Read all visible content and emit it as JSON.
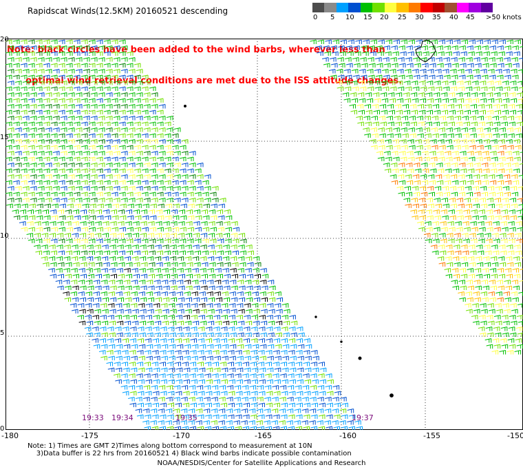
{
  "title": "Rapidscat Winds(12.5KM) 20160521 descending",
  "note_lines": [
    "Note: black circles have been added to the wind barbs, wherever less than",
    "      optimal wind retrieval conditions are met due to the ISS attitude changes."
  ],
  "legend": {
    "colors": [
      "#4d4d4d",
      "#8a8a8a",
      "#00a0ff",
      "#0050d0",
      "#00c000",
      "#70e000",
      "#ffff40",
      "#ffc000",
      "#ff7a00",
      "#ff0000",
      "#c00000",
      "#a05030",
      "#ff00ff",
      "#a000e0",
      "#6000a0"
    ],
    "labels": [
      "0",
      "5",
      "10",
      "15",
      "20",
      "25",
      "30",
      "35",
      "40",
      "45",
      ">50 knots"
    ]
  },
  "map": {
    "x_ticks": [
      "-180",
      "-175",
      "-170",
      "-165",
      "-160",
      "-155",
      "-150"
    ],
    "y_ticks": [
      "20",
      "15",
      "10",
      "5",
      "0"
    ],
    "times": [
      "19:33",
      "19:34",
      "19:35",
      "19:37"
    ]
  },
  "footer": {
    "line1": "Note: 1) Times are GMT 2)Times along bottom correspond to measurement at 10N",
    "line2": "    3)Data buffer is 22 hrs from 20160521 4) Black wind barbs indicate possible contamination",
    "line3": "NOAA/NESDIS/Center for Satellite Applications and Research"
  }
}
